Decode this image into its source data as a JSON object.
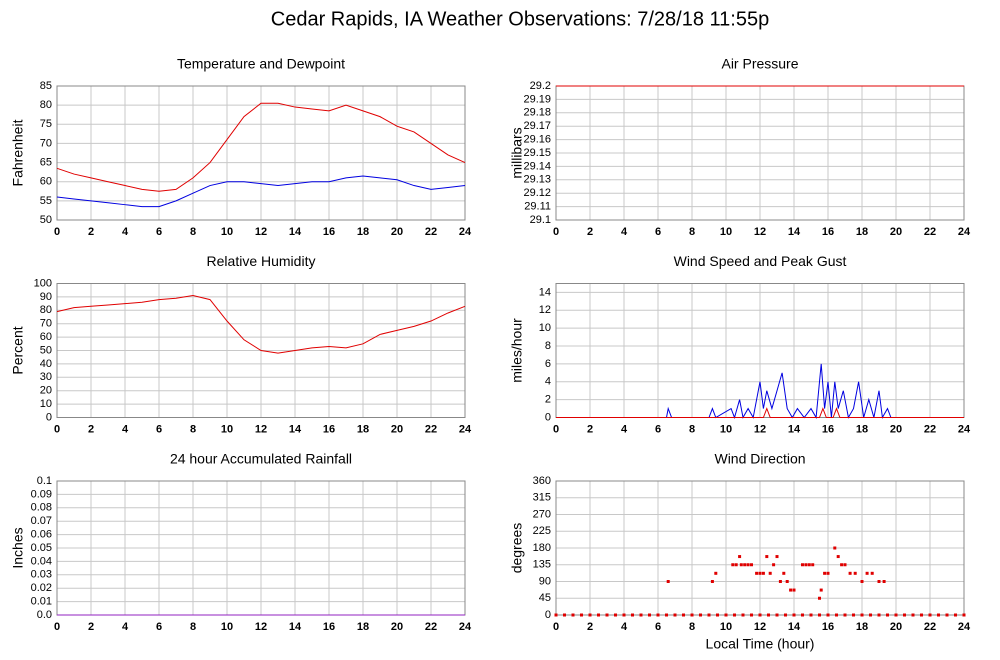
{
  "title": "Cedar Rapids, IA Weather Observations: 7/28/18 11:55p",
  "chart_data": [
    {
      "type": "line",
      "title": "Temperature and Dewpoint",
      "ylabel": "Fahrenheit",
      "xlim": [
        0,
        24
      ],
      "xticks": [
        0,
        2,
        4,
        6,
        8,
        10,
        12,
        14,
        16,
        18,
        20,
        22,
        24
      ],
      "ylim": [
        50,
        85
      ],
      "yticks": [
        50,
        55,
        60,
        65,
        70,
        75,
        80,
        85
      ],
      "grid": true,
      "series": [
        {
          "color": "#e00000",
          "x": [
            0,
            1,
            2,
            3,
            4,
            5,
            6,
            7,
            8,
            9,
            10,
            11,
            12,
            13,
            14,
            15,
            16,
            17,
            18,
            19,
            20,
            21,
            22,
            23,
            24
          ],
          "values": [
            63.5,
            62,
            61,
            60,
            59,
            58,
            57.5,
            58,
            61,
            65,
            71,
            77,
            80.5,
            80.5,
            79.5,
            79,
            78.5,
            80,
            78.5,
            77,
            74.5,
            73,
            70,
            67,
            65
          ]
        },
        {
          "color": "#0000e0",
          "x": [
            0,
            1,
            2,
            3,
            4,
            5,
            6,
            7,
            8,
            9,
            10,
            11,
            12,
            13,
            14,
            15,
            16,
            17,
            18,
            19,
            20,
            21,
            22,
            23,
            24
          ],
          "values": [
            56,
            55.5,
            55,
            54.5,
            54,
            53.5,
            53.5,
            55,
            57,
            59,
            60,
            60,
            59.5,
            59,
            59.5,
            60,
            60,
            61,
            61.5,
            61,
            60.5,
            59,
            58,
            58.5,
            59
          ]
        }
      ]
    },
    {
      "type": "line",
      "title": "Air Pressure",
      "ylabel": "millibars",
      "xlim": [
        0,
        24
      ],
      "xticks": [
        0,
        2,
        4,
        6,
        8,
        10,
        12,
        14,
        16,
        18,
        20,
        22,
        24
      ],
      "ylim": [
        29.1,
        29.2
      ],
      "yticks": [
        29.1,
        29.11,
        29.12,
        29.13,
        29.14,
        29.15,
        29.16,
        29.17,
        29.18,
        29.19,
        29.2
      ],
      "grid": true,
      "series": [
        {
          "color": "#e00000",
          "x": [
            0,
            24
          ],
          "values": [
            29.2,
            29.2
          ]
        }
      ]
    },
    {
      "type": "line",
      "title": "Relative Humidity",
      "ylabel": "Percent",
      "xlim": [
        0,
        24
      ],
      "xticks": [
        0,
        2,
        4,
        6,
        8,
        10,
        12,
        14,
        16,
        18,
        20,
        22,
        24
      ],
      "ylim": [
        0,
        100
      ],
      "yticks": [
        0,
        10,
        20,
        30,
        40,
        50,
        60,
        70,
        80,
        90,
        100
      ],
      "grid": true,
      "series": [
        {
          "color": "#e00000",
          "x": [
            0,
            1,
            2,
            3,
            4,
            5,
            6,
            7,
            8,
            9,
            10,
            11,
            12,
            13,
            14,
            15,
            16,
            17,
            18,
            19,
            20,
            21,
            22,
            23,
            24
          ],
          "values": [
            79,
            82,
            83,
            84,
            85,
            86,
            88,
            89,
            91,
            88,
            72,
            58,
            50,
            48,
            50,
            52,
            53,
            52,
            55,
            62,
            65,
            68,
            72,
            78,
            83
          ]
        }
      ]
    },
    {
      "type": "line",
      "title": "Wind Speed and Peak Gust",
      "ylabel": "miles/hour",
      "xlim": [
        0,
        24
      ],
      "xticks": [
        0,
        2,
        4,
        6,
        8,
        10,
        12,
        14,
        16,
        18,
        20,
        22,
        24
      ],
      "ylim": [
        0,
        15
      ],
      "yticks": [
        0,
        2,
        4,
        6,
        8,
        10,
        12,
        14
      ],
      "grid": true,
      "series": [
        {
          "color": "#0000e0",
          "x": [
            0,
            6.5,
            6.6,
            6.8,
            9,
            9.2,
            9.4,
            10.3,
            10.5,
            10.8,
            11,
            11.3,
            11.6,
            12,
            12.2,
            12.4,
            12.7,
            13,
            13.3,
            13.6,
            13.9,
            14.2,
            14.6,
            15,
            15.3,
            15.6,
            15.8,
            16,
            16.2,
            16.4,
            16.6,
            16.9,
            17.2,
            17.5,
            17.8,
            18.1,
            18.4,
            18.7,
            19,
            19.2,
            19.5,
            19.7,
            24
          ],
          "values": [
            0,
            0,
            1,
            0,
            0,
            1,
            0,
            1,
            0,
            2,
            0,
            1,
            0,
            4,
            1,
            3,
            1,
            3,
            5,
            1,
            0,
            1,
            0,
            1,
            0,
            6,
            1,
            4,
            0,
            4,
            1,
            3,
            0,
            1,
            4,
            0,
            2,
            0,
            3,
            0,
            1,
            0,
            0
          ]
        },
        {
          "color": "#e00000",
          "x": [
            0,
            12.2,
            12.4,
            12.6,
            15.5,
            15.7,
            15.9,
            16.3,
            16.5,
            16.7,
            24
          ],
          "values": [
            0,
            0,
            1,
            0,
            0,
            1,
            0,
            0,
            1,
            0,
            0
          ]
        }
      ]
    },
    {
      "type": "line",
      "title": "24 hour Accumulated Rainfall",
      "ylabel": "Inches",
      "xlim": [
        0,
        24
      ],
      "xticks": [
        0,
        2,
        4,
        6,
        8,
        10,
        12,
        14,
        16,
        18,
        20,
        22,
        24
      ],
      "ylim": [
        0,
        0.1
      ],
      "yticks": [
        {
          "value": 0,
          "label": "0.0"
        },
        0.01,
        0.02,
        0.03,
        0.04,
        0.05,
        0.06,
        0.07,
        0.08,
        0.09,
        0.1
      ],
      "grid": true,
      "series": [
        {
          "color": "#9020c0",
          "x": [
            0,
            24
          ],
          "values": [
            0,
            0
          ]
        }
      ]
    },
    {
      "type": "scatter",
      "title": "Wind Direction",
      "ylabel": "degrees",
      "xlabel": "Local Time (hour)",
      "xlim": [
        0,
        24
      ],
      "xticks": [
        0,
        2,
        4,
        6,
        8,
        10,
        12,
        14,
        16,
        18,
        20,
        22,
        24
      ],
      "ylim": [
        0,
        360
      ],
      "yticks": [
        0,
        45,
        90,
        135,
        180,
        225,
        270,
        315,
        360
      ],
      "grid": true,
      "series": [
        {
          "color": "#e00000",
          "x": [
            0,
            0.5,
            1,
            1.5,
            2,
            2.5,
            3,
            3.5,
            4,
            4.5,
            5,
            5.5,
            6,
            6.5,
            7,
            7.5,
            8,
            8.5,
            9,
            9.5,
            10,
            10.5,
            11,
            11.5,
            12,
            12.5,
            13,
            13.5,
            14,
            14.5,
            15,
            15.5,
            16,
            16.5,
            17,
            17.5,
            18,
            18.5,
            19,
            19.5,
            20,
            20.5,
            21,
            21.5,
            22,
            22.5,
            23,
            23.5,
            24,
            6.6,
            9.2,
            9.4,
            10.4,
            10.6,
            10.8,
            10.9,
            11.1,
            11.3,
            11.5,
            11.8,
            12,
            12.2,
            12.4,
            12.6,
            12.8,
            13,
            13.2,
            13.4,
            13.6,
            13.8,
            14,
            14.5,
            14.7,
            14.9,
            15.1,
            15.5,
            15.6,
            15.8,
            16,
            16.4,
            16.6,
            16.8,
            17,
            17.3,
            17.6,
            18,
            18.3,
            18.6,
            19,
            19.3
          ],
          "values": [
            0,
            0,
            0,
            0,
            0,
            0,
            0,
            0,
            0,
            0,
            0,
            0,
            0,
            0,
            0,
            0,
            0,
            0,
            0,
            0,
            0,
            0,
            0,
            0,
            0,
            0,
            0,
            0,
            0,
            0,
            0,
            0,
            0,
            0,
            0,
            0,
            0,
            0,
            0,
            0,
            0,
            0,
            0,
            0,
            0,
            0,
            0,
            0,
            0,
            90,
            90,
            112,
            135,
            135,
            157,
            135,
            135,
            135,
            135,
            112,
            112,
            112,
            157,
            112,
            135,
            157,
            90,
            112,
            90,
            67,
            67,
            135,
            135,
            135,
            135,
            45,
            67,
            112,
            112,
            180,
            157,
            135,
            135,
            112,
            112,
            90,
            112,
            112,
            90,
            90
          ]
        }
      ]
    }
  ]
}
